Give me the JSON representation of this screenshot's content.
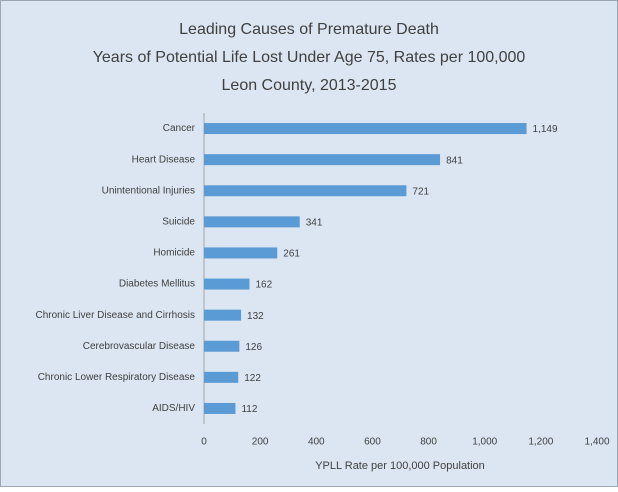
{
  "chart_data": {
    "type": "hbar",
    "title": "Leading Causes of Premature Death",
    "subtitle": [
      "Years of Potential Life Lost Under Age 75, Rates per 100,000",
      "Leon County, 2013-2015"
    ],
    "categories": [
      "Cancer",
      "Heart Disease",
      "Unintentional Injuries",
      "Suicide",
      "Homicide",
      "Diabetes Mellitus",
      "Chronic Liver Disease and Cirrhosis",
      "Cerebrovascular Disease",
      "Chronic Lower Respiratory Disease",
      "AIDS/HIV"
    ],
    "values": [
      1149,
      841,
      721,
      341,
      261,
      162,
      132,
      126,
      122,
      112
    ],
    "value_labels": [
      "1,149",
      "841",
      "721",
      "341",
      "261",
      "162",
      "132",
      "126",
      "122",
      "112"
    ],
    "color": "#5b9bd5",
    "xlim": [
      0,
      1400
    ],
    "xticks": [
      0,
      200,
      400,
      600,
      800,
      {
        "value": 1000,
        "label": "1,000"
      },
      {
        "value": 1200,
        "label": "1,200"
      },
      {
        "value": 1400,
        "label": "1,400"
      }
    ],
    "xlabel": "YPLL Rate per 100,000 Population"
  }
}
